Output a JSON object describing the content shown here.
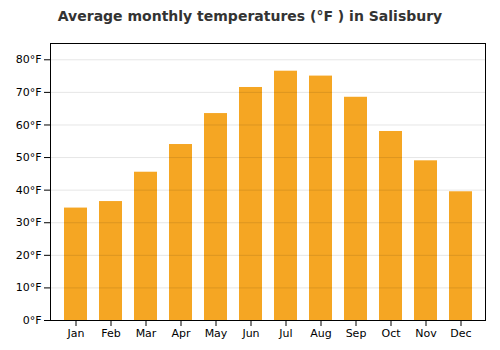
{
  "chart_data": {
    "type": "bar",
    "title": "Average monthly temperatures (°F ) in Salisbury",
    "categories": [
      "Jan",
      "Feb",
      "Mar",
      "Apr",
      "May",
      "Jun",
      "Jul",
      "Aug",
      "Sep",
      "Oct",
      "Nov",
      "Dec"
    ],
    "values": [
      34.5,
      36.5,
      45.5,
      54.0,
      63.5,
      71.5,
      76.5,
      75.0,
      68.5,
      58.0,
      49.0,
      39.5
    ],
    "color": "#F5A623",
    "ylim": [
      0,
      85
    ],
    "yticks": [
      {
        "value": 0,
        "label": "0°F"
      },
      {
        "value": 10,
        "label": "10°F"
      },
      {
        "value": 20,
        "label": "20°F"
      },
      {
        "value": 30,
        "label": "30°F"
      },
      {
        "value": 40,
        "label": "40°F"
      },
      {
        "value": 50,
        "label": "50°F"
      },
      {
        "value": 60,
        "label": "60°F"
      },
      {
        "value": 70,
        "label": "70°F"
      },
      {
        "value": 80,
        "label": "80°F"
      }
    ],
    "grid": true
  }
}
